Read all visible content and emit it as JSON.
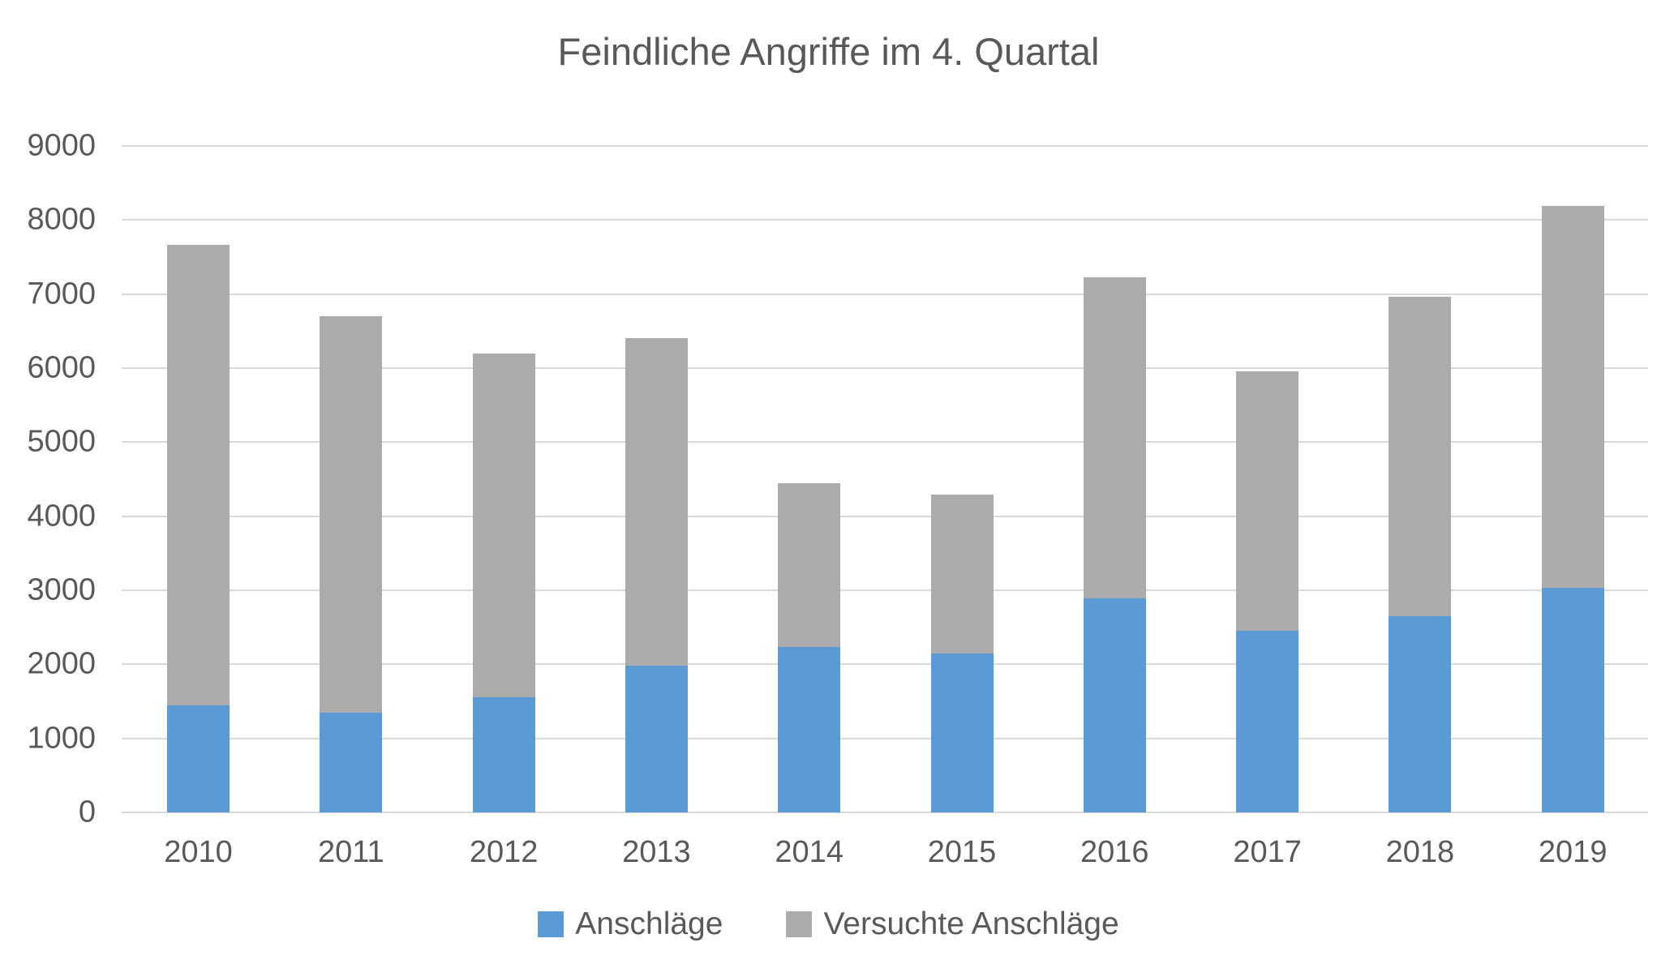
{
  "title": "Feindliche Angriffe im 4. Quartal",
  "colors": {
    "series_blue": "#5B9BD5",
    "series_gray": "#ABABAB",
    "text": "#595959",
    "gridline": "#D9D9D9",
    "background": "#FFFFFF"
  },
  "chart_data": {
    "type": "bar",
    "stacked": true,
    "title": "Feindliche Angriffe im 4. Quartal",
    "categories": [
      "2010",
      "2011",
      "2012",
      "2013",
      "2014",
      "2015",
      "2016",
      "2017",
      "2018",
      "2019"
    ],
    "series": [
      {
        "name": "Anschläge",
        "color": "#5B9BD5",
        "values": [
          1450,
          1350,
          1550,
          1980,
          2230,
          2150,
          2890,
          2450,
          2650,
          3030
        ]
      },
      {
        "name": "Versuchte Anschläge",
        "color": "#ABABAB",
        "values": [
          6220,
          5350,
          4650,
          4430,
          2210,
          2140,
          4340,
          3510,
          4310,
          5160
        ]
      }
    ],
    "stack_totals": [
      7670,
      6700,
      6200,
      6410,
      4440,
      4290,
      7230,
      5960,
      6960,
      8190
    ],
    "xlabel": "",
    "ylabel": "",
    "ylim": [
      0,
      9000
    ],
    "ytick_step": 1000,
    "yticks": [
      "0",
      "1000",
      "2000",
      "3000",
      "4000",
      "5000",
      "6000",
      "7000",
      "8000",
      "9000"
    ],
    "grid": true,
    "legend_position": "bottom"
  }
}
